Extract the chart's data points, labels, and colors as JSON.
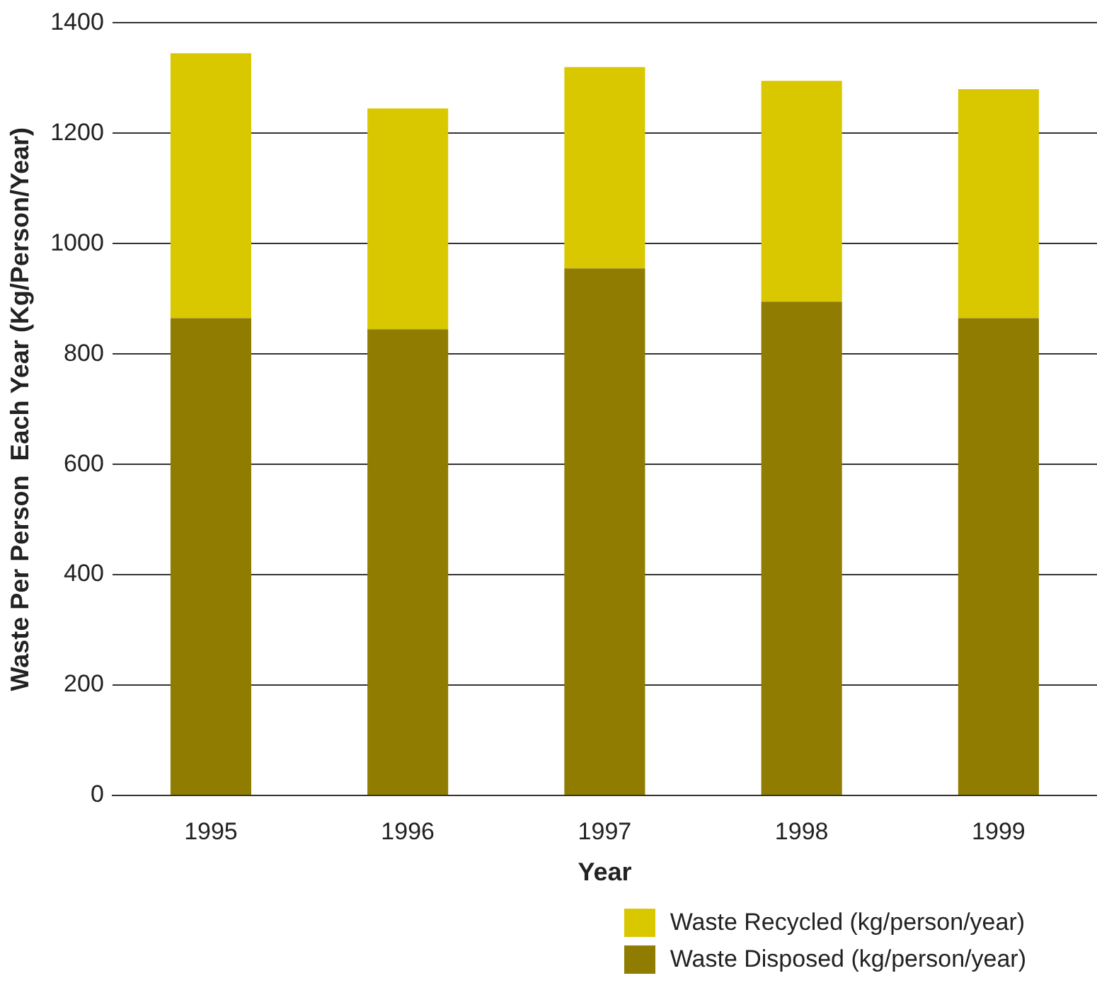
{
  "chart_data": {
    "type": "bar",
    "stacked": true,
    "xlabel": "Year",
    "ylabel": "Waste Per Person  Each Year (Kg/Person/Year)",
    "categories": [
      "1995",
      "1996",
      "1997",
      "1998",
      "1999"
    ],
    "series": [
      {
        "name": "Waste Disposed (kg/person/year)",
        "color": "#8f7c00",
        "values": [
          865,
          845,
          955,
          895,
          865
        ]
      },
      {
        "name": "Waste Recycled (kg/person/year)",
        "color": "#d9c800",
        "values": [
          480,
          400,
          365,
          400,
          415
        ]
      }
    ],
    "ylim": [
      0,
      1400
    ],
    "yticks": [
      0,
      200,
      400,
      600,
      800,
      1000,
      1200,
      1400
    ],
    "grid": "y",
    "legend": "bottom right"
  }
}
